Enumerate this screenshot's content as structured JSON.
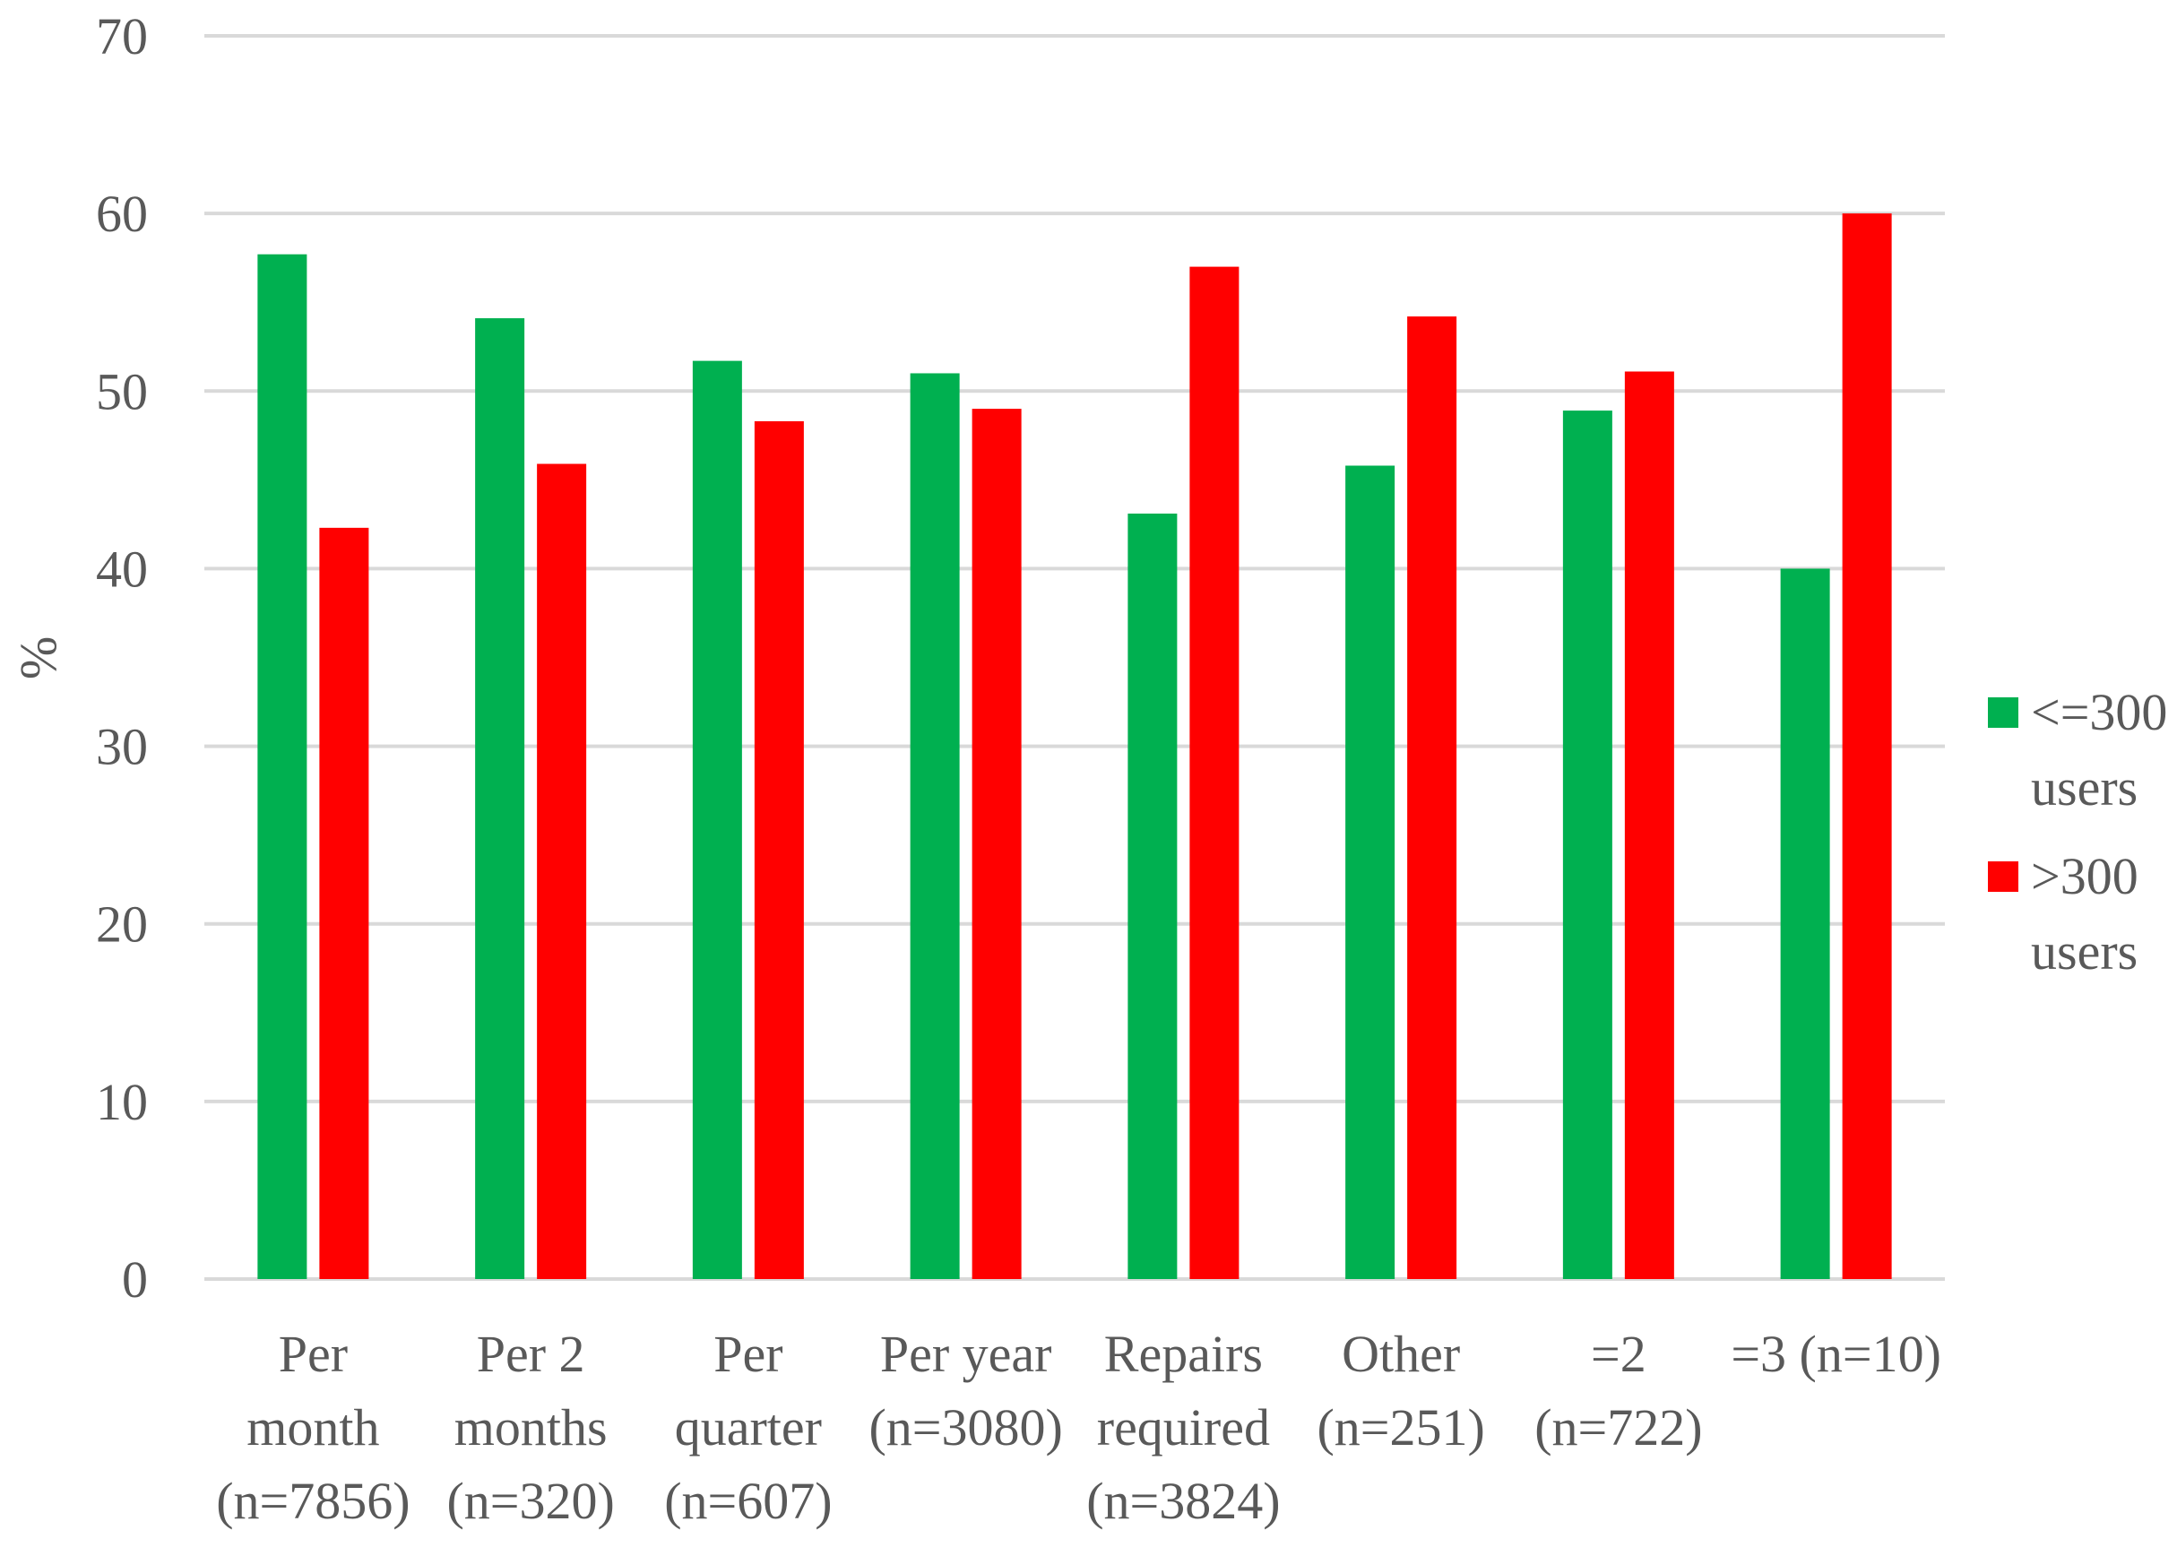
{
  "chart_data": {
    "type": "bar",
    "ylabel": "%",
    "ylim": [
      0,
      70
    ],
    "yticks": [
      0,
      10,
      20,
      30,
      40,
      50,
      60,
      70
    ],
    "grid": true,
    "legend_position": "right",
    "categories": [
      [
        "Per",
        "month",
        "(n=7856)"
      ],
      [
        "Per 2",
        "months",
        "(n=320)"
      ],
      [
        "Per",
        "quarter",
        "(n=607)"
      ],
      [
        "Per year",
        "(n=3080)"
      ],
      [
        "Repairs",
        "required",
        "(n=3824)"
      ],
      [
        "Other",
        "(n=251)"
      ],
      [
        "=2",
        "(n=722)"
      ],
      [
        "=3 (n=10)"
      ]
    ],
    "series": [
      {
        "name": [
          "<=300",
          "users"
        ],
        "color": "#00b050",
        "values": [
          57.7,
          54.1,
          51.7,
          51.0,
          43.1,
          45.8,
          48.9,
          40.0
        ]
      },
      {
        "name": [
          ">300",
          "users"
        ],
        "color": "#ff0000",
        "values": [
          42.3,
          45.9,
          48.3,
          49.0,
          57.0,
          54.2,
          51.1,
          60.0
        ]
      }
    ]
  }
}
